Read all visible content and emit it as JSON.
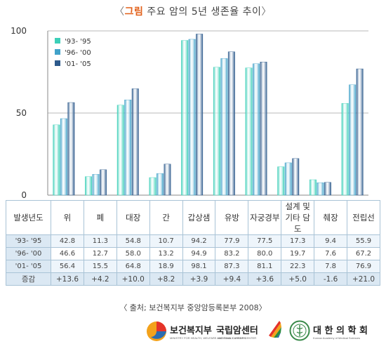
{
  "title": {
    "open": "〈",
    "highlight": "그림",
    "rest": " 주요 암의 5년 생존율 추이",
    "close": "〉"
  },
  "chart_data": {
    "type": "bar",
    "categories": [
      "위",
      "폐",
      "대장",
      "간",
      "갑상샘",
      "유방",
      "자궁경부",
      "설계 및 기타 담도",
      "췌장",
      "전립선"
    ],
    "series": [
      {
        "name": "'93- '95",
        "values": [
          42.8,
          11.3,
          54.8,
          10.7,
          94.2,
          77.9,
          77.5,
          17.3,
          9.4,
          55.9
        ],
        "color": "#3ccfb8"
      },
      {
        "name": "'96- '00",
        "values": [
          46.6,
          12.7,
          58.0,
          13.2,
          94.9,
          83.2,
          80.0,
          19.7,
          7.6,
          67.2
        ],
        "color": "#41a2c9"
      },
      {
        "name": "'01- '05",
        "values": [
          56.4,
          15.5,
          64.8,
          18.9,
          98.1,
          87.3,
          81.1,
          22.3,
          7.8,
          76.9
        ],
        "color": "#2d5a8c"
      }
    ],
    "yticks": [
      0,
      50,
      100
    ],
    "ylim": [
      0,
      100
    ],
    "grid": true,
    "legend_position": "top-left"
  },
  "table": {
    "header_label": "발생년도",
    "columns": [
      "위",
      "폐",
      "대장",
      "간",
      "갑상샘",
      "유방",
      "자궁경부",
      "설계 및\n기타 담도",
      "췌장",
      "전립선"
    ],
    "rows": [
      {
        "label": "'93- '95",
        "values": [
          "42.8",
          "11.3",
          "54.8",
          "10.7",
          "94.2",
          "77.9",
          "77.5",
          "17.3",
          "9.4",
          "55.9"
        ]
      },
      {
        "label": "'96- '00",
        "values": [
          "46.6",
          "12.7",
          "58.0",
          "13.2",
          "94.9",
          "83.2",
          "80.0",
          "19.7",
          "7.6",
          "67.2"
        ]
      },
      {
        "label": "'01- '05",
        "values": [
          "56.4",
          "15.5",
          "64.8",
          "18.9",
          "98.1",
          "87.3",
          "81.1",
          "22.3",
          "7.8",
          "76.9"
        ]
      }
    ],
    "increase": {
      "label": "증감",
      "values": [
        "+13.6",
        "+4.2",
        "+10.0",
        "+8.2",
        "+3.9",
        "+9.4",
        "+3.6",
        "+5.0",
        "-1.6",
        "+21.0"
      ]
    }
  },
  "source": "〈 출처; 보건복지부 중앙암등록본부 2008〉",
  "logos": [
    {
      "name": "보건복지부",
      "sub": "MINISTRY FOR HEALTH, WELFARE AND FAMILY AFFAIRS",
      "icon": "ministry-logo-icon"
    },
    {
      "name": "국립암센터",
      "sub": "NATIONAL CANCER CENTER",
      "icon": "ncc-logo-icon"
    },
    {
      "name": "대 한 의 학 회",
      "sub": "Korean Academy of Medical Sciences",
      "icon": "kams-seal-icon"
    }
  ]
}
